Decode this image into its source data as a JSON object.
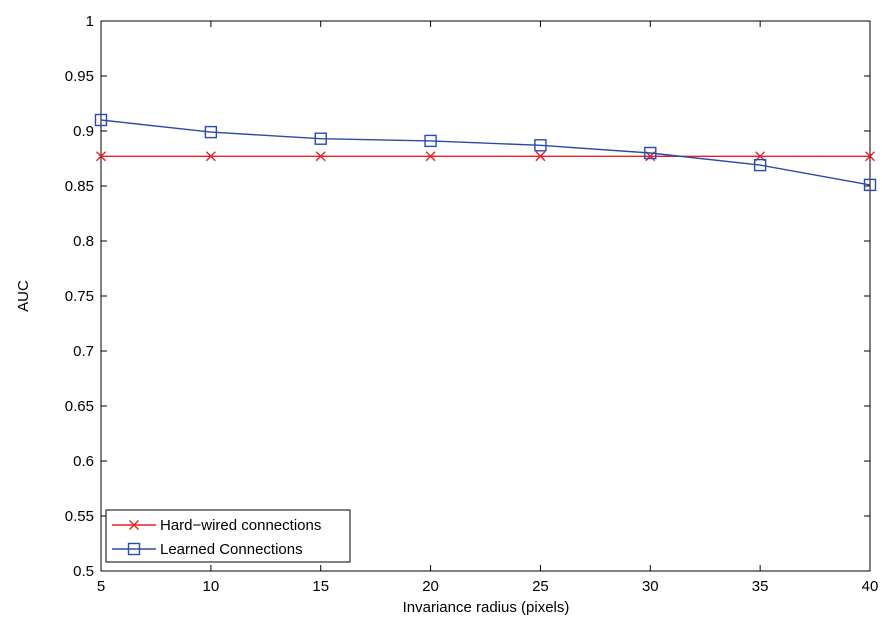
{
  "chart_data": {
    "type": "line",
    "title": "",
    "xlabel": "Invariance radius (pixels)",
    "ylabel": "AUC",
    "xlim": [
      5,
      40
    ],
    "ylim": [
      0.5,
      1
    ],
    "x": [
      5,
      10,
      15,
      20,
      25,
      30,
      35,
      40
    ],
    "x_ticks": [
      "5",
      "10",
      "15",
      "20",
      "25",
      "30",
      "35",
      "40"
    ],
    "y_ticks": [
      "0.5",
      "0.55",
      "0.6",
      "0.65",
      "0.7",
      "0.75",
      "0.8",
      "0.85",
      "0.9",
      "0.95",
      "1"
    ],
    "grid": false,
    "legend_position": "bottom-left",
    "series": [
      {
        "name": "Hard−wired connections",
        "color": "#e8202a",
        "marker": "x",
        "values": [
          0.877,
          0.877,
          0.877,
          0.877,
          0.877,
          0.877,
          0.877,
          0.877
        ]
      },
      {
        "name": "Learned Connections",
        "color": "#2a4aa8",
        "marker": "square",
        "values": [
          0.91,
          0.899,
          0.893,
          0.891,
          0.887,
          0.88,
          0.869,
          0.851
        ]
      }
    ]
  }
}
